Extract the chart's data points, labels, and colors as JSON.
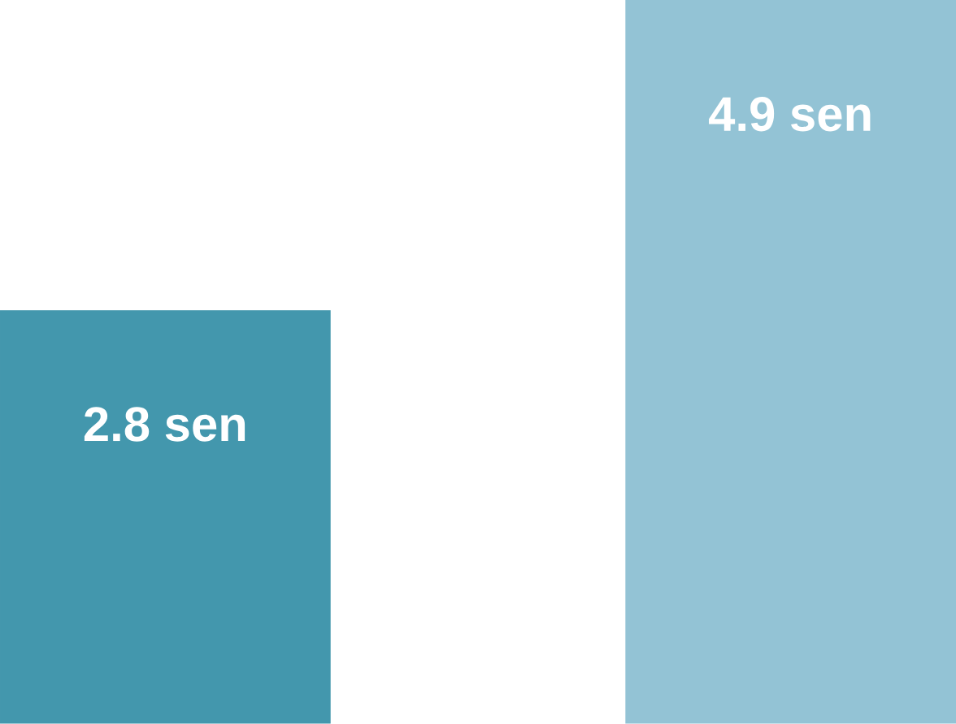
{
  "chart_data": {
    "type": "bar",
    "categories": [
      null,
      null
    ],
    "values": [
      2.8,
      4.9
    ],
    "colors": [
      "#4397ad",
      "#93c3d5"
    ],
    "value_labels": [
      "2.8 sen",
      "4.9 sen"
    ]
  }
}
